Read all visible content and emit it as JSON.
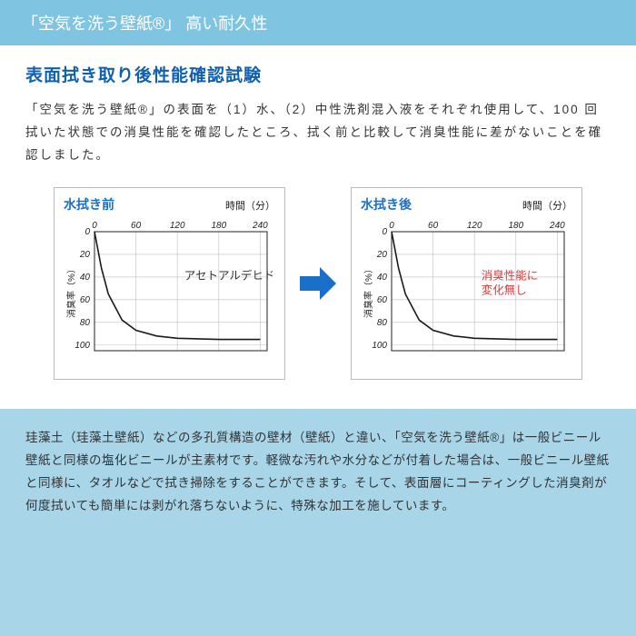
{
  "header": {
    "title": "「空気を洗う壁紙®」 高い耐久性"
  },
  "section": {
    "title": "表面拭き取り後性能確認試験",
    "body": "「空気を洗う壁紙®」の表面を（1）水、（2）中性洗剤混入液をそれぞれ使用して、100 回拭いた状態での消臭性能を確認したところ、拭く前と比較して消臭性能に差がないことを確認しました。"
  },
  "chart_before": {
    "type": "line",
    "title": "水拭き前",
    "xlabel": "時間（分）",
    "ylabel": "消臭率（%）",
    "x_ticks": [
      0,
      60,
      120,
      180,
      240
    ],
    "y_ticks": [
      0,
      20,
      40,
      60,
      80,
      100
    ],
    "xlim": [
      0,
      250
    ],
    "ylim": [
      0,
      105
    ],
    "series": [
      {
        "x": 0,
        "y": 0
      },
      {
        "x": 10,
        "y": 32
      },
      {
        "x": 20,
        "y": 55
      },
      {
        "x": 40,
        "y": 78
      },
      {
        "x": 60,
        "y": 87
      },
      {
        "x": 90,
        "y": 92
      },
      {
        "x": 120,
        "y": 94
      },
      {
        "x": 180,
        "y": 95
      },
      {
        "x": 240,
        "y": 95
      }
    ],
    "annotation": "アセトアルデヒド",
    "annotation_color": "#333333",
    "line_color": "#1a1a1a",
    "grid_color": "#bfbfbf",
    "axis_color": "#222222",
    "label_color": "#222222",
    "title_color": "#1a6fc9",
    "background_color": "#ffffff",
    "title_fontsize": 14,
    "tick_fontsize": 10,
    "line_width": 1.6
  },
  "chart_after": {
    "type": "line",
    "title": "水拭き後",
    "xlabel": "時間（分）",
    "ylabel": "消臭率（%）",
    "x_ticks": [
      0,
      60,
      120,
      180,
      240
    ],
    "y_ticks": [
      0,
      20,
      40,
      60,
      80,
      100
    ],
    "xlim": [
      0,
      250
    ],
    "ylim": [
      0,
      105
    ],
    "series": [
      {
        "x": 0,
        "y": 0
      },
      {
        "x": 10,
        "y": 32
      },
      {
        "x": 20,
        "y": 55
      },
      {
        "x": 40,
        "y": 78
      },
      {
        "x": 60,
        "y": 87
      },
      {
        "x": 90,
        "y": 92
      },
      {
        "x": 120,
        "y": 94
      },
      {
        "x": 180,
        "y": 95
      },
      {
        "x": 240,
        "y": 95
      }
    ],
    "annotation": "消臭性能に\n変化無し",
    "annotation_color": "#e03838",
    "line_color": "#1a1a1a",
    "grid_color": "#bfbfbf",
    "axis_color": "#222222",
    "label_color": "#222222",
    "title_color": "#1a6fc9",
    "background_color": "#ffffff",
    "title_fontsize": 14,
    "tick_fontsize": 10,
    "line_width": 1.6
  },
  "arrow_color": "#1a6fc9",
  "footer": {
    "text": "珪藻土（珪藻土壁紙）などの多孔質構造の壁材（壁紙）と違い、「空気を洗う壁紙®」は一般ビニール壁紙と同様の塩化ビニールが主素材です。軽微な汚れや水分などが付着した場合は、一般ビニール壁紙と同様に、タオルなどで拭き掃除をすることができます。そして、表面層にコーティングした消臭剤が何度拭いても簡単には剥がれ落ちないように、特殊な加工を施しています。"
  }
}
